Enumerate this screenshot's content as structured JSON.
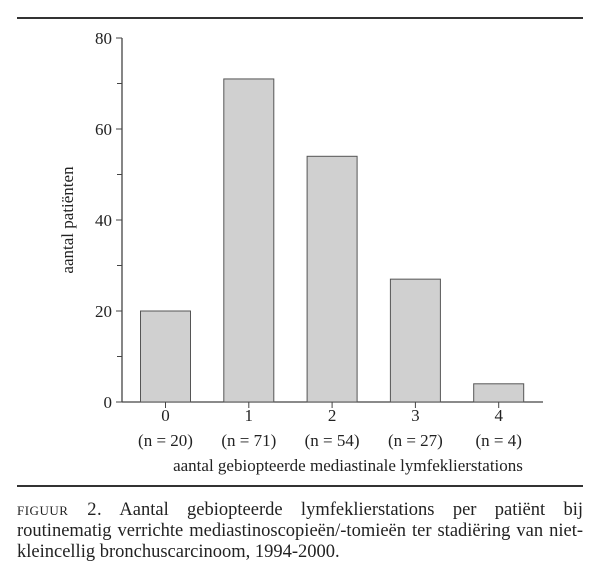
{
  "chart_data": {
    "type": "bar",
    "categories": [
      "0",
      "1",
      "2",
      "3",
      "4"
    ],
    "category_sublabels": [
      "(n = 20)",
      "(n = 71)",
      "(n = 54)",
      "(n = 27)",
      "(n = 4)"
    ],
    "values": [
      20,
      71,
      54,
      27,
      4
    ],
    "xlabel": "aantal gebiopteerde mediastinale lymfeklierstations",
    "ylabel": "aantal patiënten",
    "ylim": [
      0,
      80
    ],
    "yticks": [
      0,
      20,
      40,
      60,
      80
    ],
    "yminor_ticks": [
      10,
      30,
      50,
      70
    ],
    "grid": false,
    "bar_color": "#d0d0d0"
  },
  "caption": {
    "label": "figuur 2.",
    "text": " Aantal gebiopteerde lymfeklierstations per patiënt bij routinematig verrichte mediastinoscopieën/-tomieën ter stadiëring van niet-kleincellig bronchuscarcinoom, 1994-2000."
  }
}
